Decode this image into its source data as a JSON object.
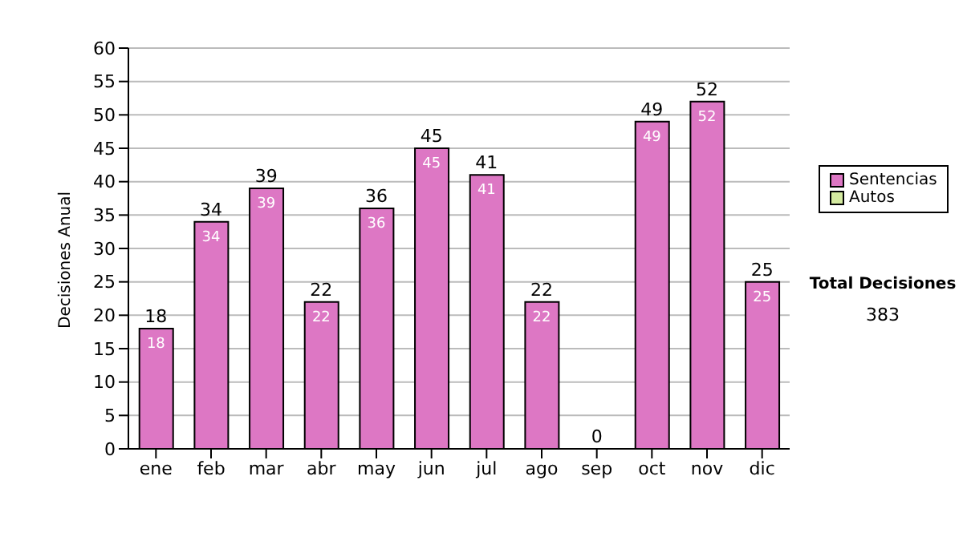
{
  "chart_data": {
    "type": "bar",
    "ylabel": "Decisiones Anual",
    "categories": [
      "ene",
      "feb",
      "mar",
      "abr",
      "may",
      "jun",
      "jul",
      "ago",
      "sep",
      "oct",
      "nov",
      "dic"
    ],
    "stacked": true,
    "series": [
      {
        "name": "Sentencias",
        "color": "#dd77c4",
        "values": [
          18,
          34,
          39,
          22,
          36,
          45,
          41,
          22,
          0,
          49,
          52,
          25
        ],
        "value_labels": [
          "18",
          "34",
          "39",
          "22",
          "36",
          "45",
          "41",
          "22",
          null,
          "49",
          "52",
          "25"
        ]
      },
      {
        "name": "Autos",
        "color": "#d4eaa0",
        "values": [
          0,
          0,
          0,
          0,
          0,
          0,
          0,
          0,
          0,
          0,
          0,
          0
        ]
      }
    ],
    "totals": [
      "18",
      "34",
      "39",
      "22",
      "36",
      "45",
      "41",
      "22",
      "0",
      "49",
      "52",
      "25"
    ],
    "ylim": [
      0,
      60
    ],
    "yticks": [
      0,
      5,
      10,
      15,
      20,
      25,
      30,
      35,
      40,
      45,
      50,
      55,
      60
    ],
    "grid": "y",
    "legend": "right",
    "annotations": [
      "Total Decisiones",
      "383"
    ]
  }
}
